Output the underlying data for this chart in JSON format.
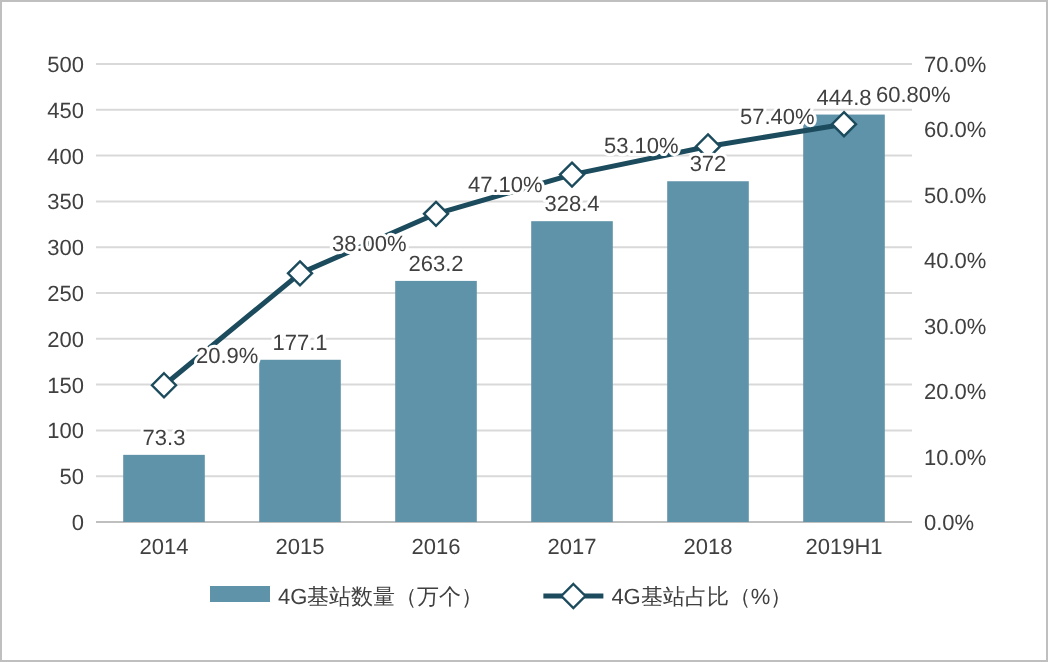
{
  "chart_data": {
    "type": "bar",
    "categories": [
      "2014",
      "2015",
      "2016",
      "2017",
      "2018",
      "2019H1"
    ],
    "series": [
      {
        "name": "4G基站数量（万个）",
        "color": "#5e93aa",
        "values": [
          73.3,
          177.1,
          263.2,
          328.4,
          372,
          444.8
        ],
        "value_labels": [
          "73.3",
          "177.1",
          "263.2",
          "328.4",
          "372",
          "444.8"
        ]
      },
      {
        "name": "4G基站占比（%）",
        "type": "line",
        "axis": "y2",
        "marker": "diamond",
        "color": "#1b4b5c",
        "values": [
          20.9,
          38.0,
          47.1,
          53.1,
          57.4,
          60.8
        ],
        "value_labels": [
          "20.9%",
          "38.00%",
          "47.10%",
          "53.10%",
          "57.40%",
          "60.80%"
        ]
      }
    ],
    "ylim": [
      0,
      500
    ],
    "yticks": [
      0,
      50,
      100,
      150,
      200,
      250,
      300,
      350,
      400,
      450,
      500
    ],
    "y2lim": [
      0,
      70
    ],
    "y2ticks": [
      {
        "value": 0,
        "label": "0.0%"
      },
      {
        "value": 10,
        "label": "10.0%"
      },
      {
        "value": 20,
        "label": "20.0%"
      },
      {
        "value": 30,
        "label": "30.0%"
      },
      {
        "value": 40,
        "label": "40.0%"
      },
      {
        "value": 50,
        "label": "50.0%"
      },
      {
        "value": 60,
        "label": "60.0%"
      },
      {
        "value": 70,
        "label": "70.0%"
      }
    ],
    "grid": "y",
    "legend": "bottom"
  }
}
